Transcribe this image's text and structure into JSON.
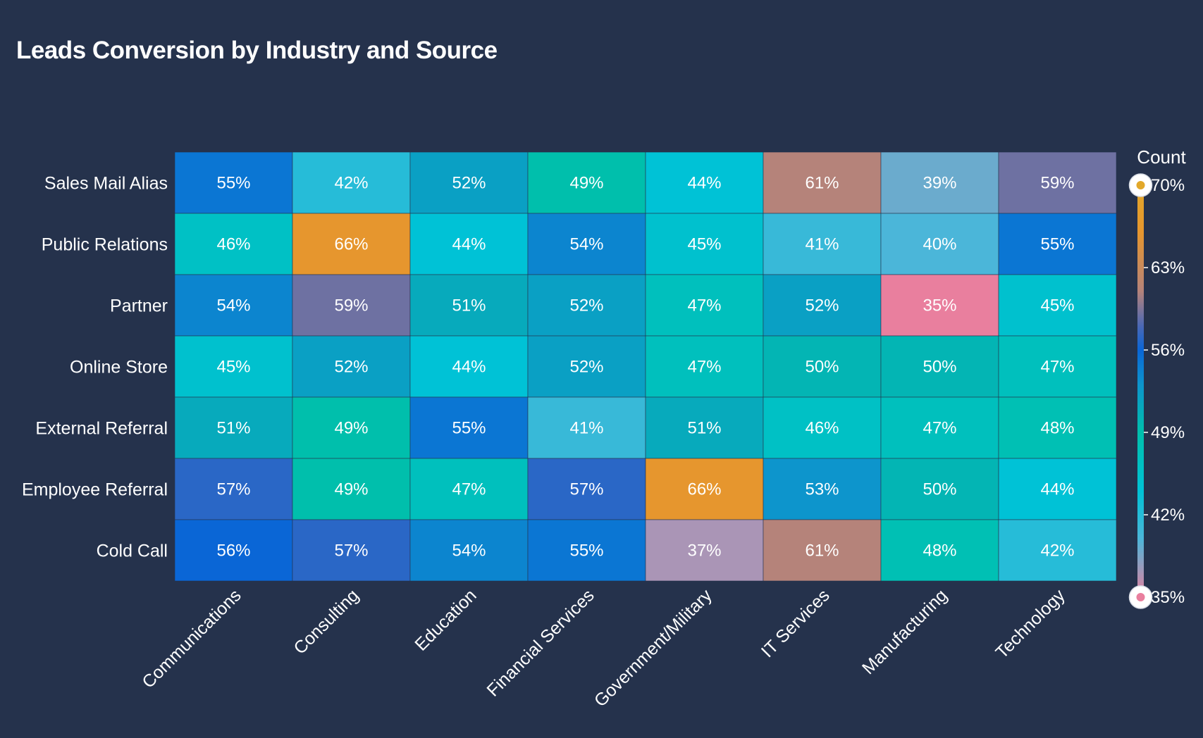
{
  "colors": {
    "background": "#25324c",
    "text": "#ffffff",
    "scale_stops": [
      {
        "value": 35,
        "color": "#e97f9e"
      },
      {
        "value": 40,
        "color": "#4bb6d9"
      },
      {
        "value": 44,
        "color": "#00c2d6"
      },
      {
        "value": 49,
        "color": "#00bfac"
      },
      {
        "value": 53,
        "color": "#0d95cc"
      },
      {
        "value": 56,
        "color": "#0a66d6"
      },
      {
        "value": 58,
        "color": "#4a68b6"
      },
      {
        "value": 61,
        "color": "#b5837a"
      },
      {
        "value": 66,
        "color": "#e6962e"
      },
      {
        "value": 70,
        "color": "#e2a82a"
      }
    ]
  },
  "chart_data": {
    "type": "heatmap",
    "title": "Leads Conversion by Industry and Source",
    "rows": [
      "Sales Mail Alias",
      "Public Relations",
      "Partner",
      "Online Store",
      "External Referral",
      "Employee Referral",
      "Cold Call"
    ],
    "columns": [
      "Communications",
      "Consulting",
      "Education",
      "Financial Services",
      "Government/Military",
      "IT Services",
      "Manufacturing",
      "Technology"
    ],
    "values": [
      [
        55,
        42,
        52,
        49,
        44,
        61,
        39,
        59
      ],
      [
        46,
        66,
        44,
        54,
        45,
        41,
        40,
        55
      ],
      [
        54,
        59,
        51,
        52,
        47,
        52,
        35,
        45
      ],
      [
        45,
        52,
        44,
        52,
        47,
        50,
        50,
        47
      ],
      [
        51,
        49,
        55,
        41,
        51,
        46,
        47,
        48
      ],
      [
        57,
        49,
        47,
        57,
        66,
        53,
        50,
        44
      ],
      [
        56,
        57,
        54,
        55,
        37,
        61,
        48,
        42
      ]
    ],
    "value_suffix": "%",
    "legend": {
      "title": "Count",
      "min": 35,
      "max": 70,
      "ticks": [
        "70%",
        "63%",
        "56%",
        "49%",
        "42%",
        "35%"
      ],
      "placement": "right"
    }
  }
}
